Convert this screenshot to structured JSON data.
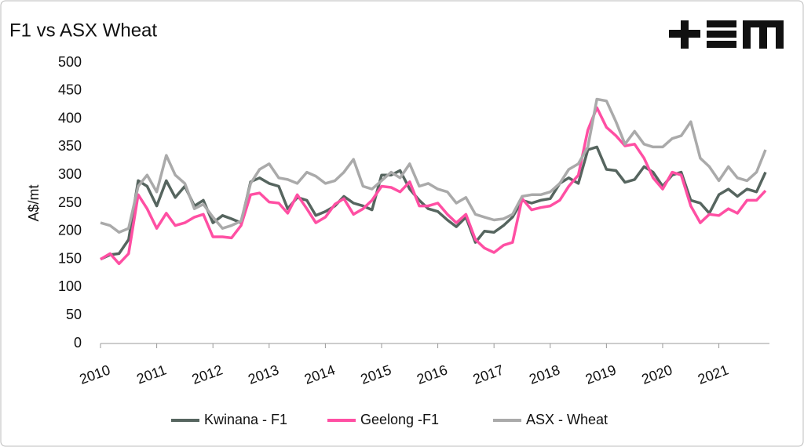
{
  "chart_data": {
    "type": "line",
    "title": "F1 vs ASX Wheat",
    "y_label": "A$/mt",
    "x": [
      2010,
      2010.17,
      2010.33,
      2010.5,
      2010.67,
      2010.83,
      2011,
      2011.17,
      2011.33,
      2011.5,
      2011.67,
      2011.83,
      2012,
      2012.17,
      2012.33,
      2012.5,
      2012.67,
      2012.83,
      2013,
      2013.17,
      2013.33,
      2013.5,
      2013.67,
      2013.83,
      2014,
      2014.17,
      2014.33,
      2014.5,
      2014.67,
      2014.83,
      2015,
      2015.17,
      2015.33,
      2015.5,
      2015.67,
      2015.83,
      2016,
      2016.17,
      2016.33,
      2016.5,
      2016.67,
      2016.83,
      2017,
      2017.17,
      2017.33,
      2017.5,
      2017.67,
      2017.83,
      2018,
      2018.17,
      2018.33,
      2018.5,
      2018.67,
      2018.83,
      2019,
      2019.17,
      2019.33,
      2019.5,
      2019.67,
      2019.83,
      2020,
      2020.17,
      2020.33,
      2020.5,
      2020.67,
      2020.83,
      2021,
      2021.17,
      2021.33,
      2021.5,
      2021.67,
      2021.83
    ],
    "series": [
      {
        "name": "Kwinana - F1",
        "color": "#56655f",
        "values": [
          150,
          158,
          160,
          185,
          290,
          280,
          245,
          290,
          260,
          280,
          245,
          255,
          215,
          228,
          222,
          215,
          288,
          295,
          285,
          280,
          240,
          260,
          255,
          228,
          235,
          245,
          262,
          250,
          245,
          238,
          300,
          300,
          308,
          275,
          255,
          240,
          235,
          220,
          208,
          225,
          180,
          200,
          198,
          210,
          225,
          255,
          250,
          255,
          258,
          285,
          295,
          285,
          345,
          350,
          310,
          308,
          287,
          292,
          315,
          305,
          280,
          300,
          305,
          255,
          250,
          232,
          265,
          275,
          262,
          275,
          270,
          305
        ]
      },
      {
        "name": "Geelong -F1",
        "color": "#ff4fa3",
        "values": [
          150,
          160,
          142,
          160,
          265,
          240,
          205,
          232,
          210,
          215,
          225,
          230,
          190,
          190,
          188,
          210,
          265,
          268,
          252,
          250,
          232,
          265,
          240,
          215,
          225,
          248,
          258,
          230,
          240,
          255,
          280,
          278,
          270,
          288,
          245,
          245,
          250,
          230,
          215,
          230,
          185,
          170,
          162,
          175,
          180,
          258,
          238,
          242,
          245,
          255,
          280,
          300,
          380,
          420,
          385,
          370,
          352,
          355,
          330,
          295,
          275,
          305,
          300,
          245,
          215,
          230,
          228,
          240,
          232,
          255,
          255,
          272
        ]
      },
      {
        "name": "ASX - Wheat",
        "color": "#aaaaaa",
        "values": [
          215,
          210,
          198,
          205,
          280,
          300,
          270,
          335,
          300,
          285,
          240,
          248,
          225,
          205,
          210,
          218,
          285,
          310,
          320,
          295,
          292,
          285,
          305,
          298,
          285,
          290,
          305,
          328,
          280,
          275,
          290,
          305,
          295,
          320,
          280,
          285,
          275,
          270,
          250,
          260,
          230,
          225,
          220,
          222,
          230,
          262,
          265,
          265,
          270,
          285,
          310,
          320,
          350,
          435,
          432,
          395,
          355,
          378,
          355,
          350,
          350,
          365,
          370,
          395,
          330,
          315,
          290,
          315,
          295,
          290,
          305,
          345
        ]
      }
    ],
    "xlim": [
      2010,
      2021.9
    ],
    "xticks": [
      2010,
      2011,
      2012,
      2013,
      2014,
      2015,
      2016,
      2017,
      2018,
      2019,
      2020,
      2021
    ],
    "ylim": [
      0,
      500
    ],
    "yticks": [
      0,
      50,
      100,
      150,
      200,
      250,
      300,
      350,
      400,
      450,
      500
    ]
  }
}
